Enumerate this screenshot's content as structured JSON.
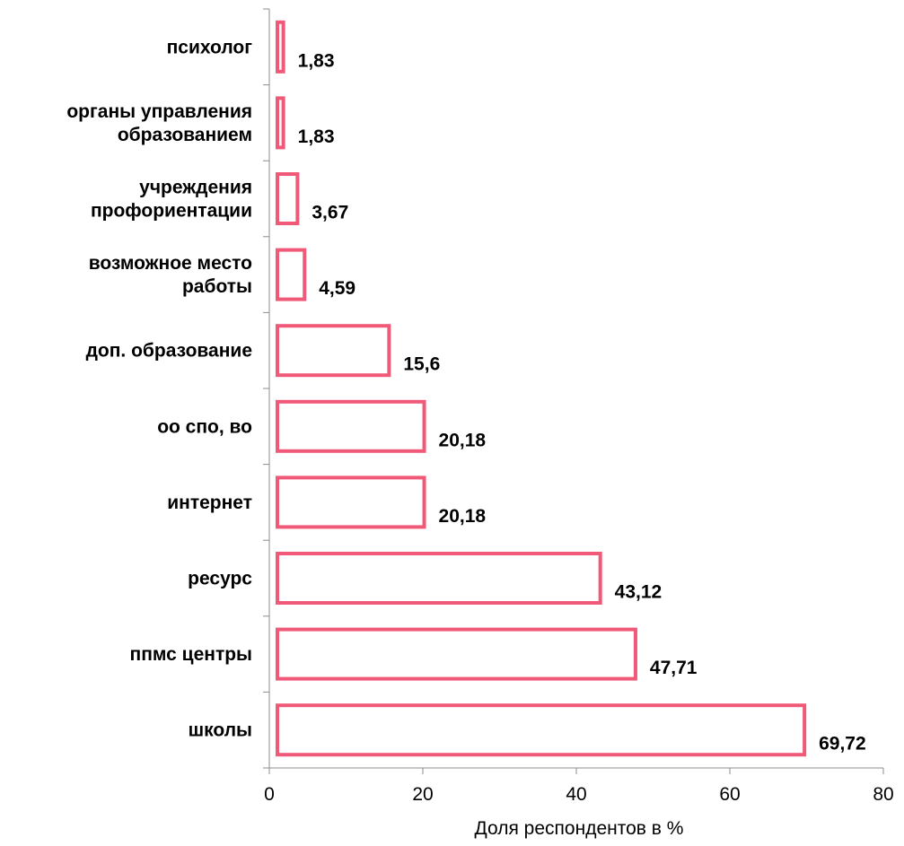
{
  "chart_data": {
    "type": "bar",
    "orientation": "horizontal",
    "categories": [
      [
        "психолог"
      ],
      [
        "органы управления",
        "образованием"
      ],
      [
        "учреждения",
        "профориентации"
      ],
      [
        "возможное место",
        "работы"
      ],
      [
        "доп. образование"
      ],
      [
        "оо спо, во"
      ],
      [
        "интернет"
      ],
      [
        "ресурс"
      ],
      [
        "ппмс центры"
      ],
      [
        "школы"
      ]
    ],
    "values": [
      1.83,
      1.83,
      3.67,
      4.59,
      15.6,
      20.18,
      20.18,
      43.12,
      47.71,
      69.72
    ],
    "value_labels": [
      "1,83",
      "1,83",
      "3,67",
      "4,59",
      "15,6",
      "20,18",
      "20,18",
      "43,12",
      "47,71",
      "69,72"
    ],
    "xlabel": "Доля респондентов в %",
    "xlim": [
      0,
      80
    ],
    "xticks": [
      0,
      20,
      40,
      60,
      80
    ],
    "grid": false,
    "legend": "none",
    "colors": {
      "bar_stroke": "#f05a78",
      "bar_fill": "#ffffff",
      "axis": "#8c8c8c"
    }
  }
}
